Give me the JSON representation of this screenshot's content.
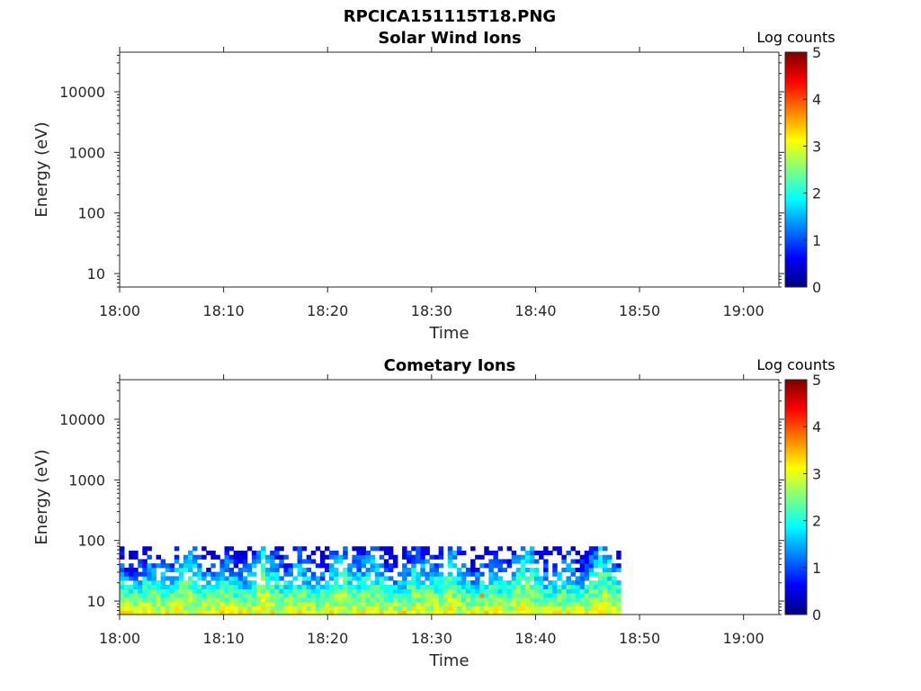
{
  "figure": {
    "filename": "RPCICA151115T18.PNG"
  },
  "colormap": {
    "name": "jet",
    "stops": [
      "#00007f",
      "#0000ff",
      "#007fff",
      "#00ffff",
      "#7fff7f",
      "#ffff00",
      "#ff7f00",
      "#ff0000",
      "#7f0000"
    ]
  },
  "chart_data": [
    {
      "type": "heatmap",
      "title": "Solar Wind Ions",
      "xlabel": "Time",
      "ylabel": "Energy (eV)",
      "x_ticks": [
        "18:00",
        "18:10",
        "18:20",
        "18:30",
        "18:40",
        "18:50",
        "19:00"
      ],
      "x_tick_minutes": [
        0,
        10,
        20,
        30,
        40,
        50,
        60
      ],
      "xlim_minutes": [
        0,
        63.4
      ],
      "y_scale": "log",
      "y_ticks": [
        "10",
        "100",
        "1000",
        "10000"
      ],
      "y_tick_values": [
        10,
        100,
        1000,
        10000
      ],
      "ylim": [
        6,
        45000
      ],
      "colorbar": {
        "label": "Log counts",
        "ticks": [
          "0",
          "1",
          "2",
          "3",
          "4",
          "5"
        ],
        "range": [
          0,
          5
        ]
      },
      "data_extent": null
    },
    {
      "type": "heatmap",
      "title": "Cometary Ions",
      "xlabel": "Time",
      "ylabel": "Energy (eV)",
      "x_ticks": [
        "18:00",
        "18:10",
        "18:20",
        "18:30",
        "18:40",
        "18:50",
        "19:00"
      ],
      "x_tick_minutes": [
        0,
        10,
        20,
        30,
        40,
        50,
        60
      ],
      "xlim_minutes": [
        0,
        63.4
      ],
      "y_scale": "log",
      "y_ticks": [
        "10",
        "100",
        "1000",
        "10000"
      ],
      "y_tick_values": [
        10,
        100,
        1000,
        10000
      ],
      "ylim": [
        6,
        45000
      ],
      "colorbar": {
        "label": "Log counts",
        "ticks": [
          "0",
          "1",
          "2",
          "3",
          "4",
          "5"
        ],
        "range": [
          0,
          5
        ]
      },
      "data_extent": {
        "x_minutes": [
          0,
          48.2
        ],
        "energy_ev": [
          6,
          80
        ],
        "log_counts_typical": [
          0.5,
          3.0
        ],
        "log_counts_peak": 3.7
      }
    }
  ]
}
